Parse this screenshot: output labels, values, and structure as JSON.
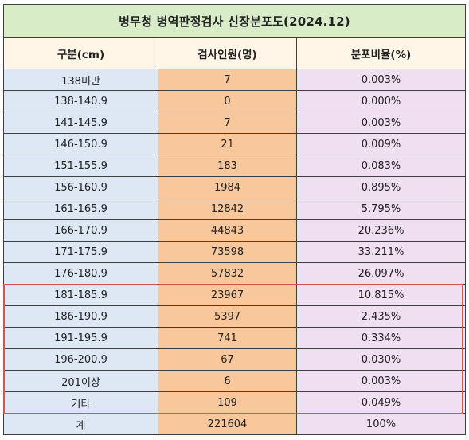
{
  "title": "병무청 병역판정검사 신장분포도(2024.12)",
  "colors": {
    "title_bg": "#d8ecc8",
    "header_bg": "#fff6e8",
    "col_a": "#dde8f4",
    "col_b": "#f8c89c",
    "col_c": "#f0dff0",
    "highlight": "#d9534f"
  },
  "headers": [
    "구분(cm)",
    "검사인원(명)",
    "분포비율(%)"
  ],
  "rows": [
    [
      "138미만",
      "7",
      "0.003%"
    ],
    [
      "138-140.9",
      "0",
      "0.000%"
    ],
    [
      "141-145.9",
      "7",
      "0.003%"
    ],
    [
      "146-150.9",
      "21",
      "0.009%"
    ],
    [
      "151-155.9",
      "183",
      "0.083%"
    ],
    [
      "156-160.9",
      "1984",
      "0.895%"
    ],
    [
      "161-165.9",
      "12842",
      "5.795%"
    ],
    [
      "166-170.9",
      "44843",
      "20.236%"
    ],
    [
      "171-175.9",
      "73598",
      "33.211%"
    ],
    [
      "176-180.9",
      "57832",
      "26.097%"
    ],
    [
      "181-185.9",
      "23967",
      "10.815%"
    ],
    [
      "186-190.9",
      "5397",
      "2.435%"
    ],
    [
      "191-195.9",
      "741",
      "0.334%"
    ],
    [
      "196-200.9",
      "67",
      "0.030%"
    ],
    [
      "201이상",
      "6",
      "0.003%"
    ],
    [
      "기타",
      "109",
      "0.049%"
    ],
    [
      "계",
      "221604",
      "100%"
    ]
  ]
}
